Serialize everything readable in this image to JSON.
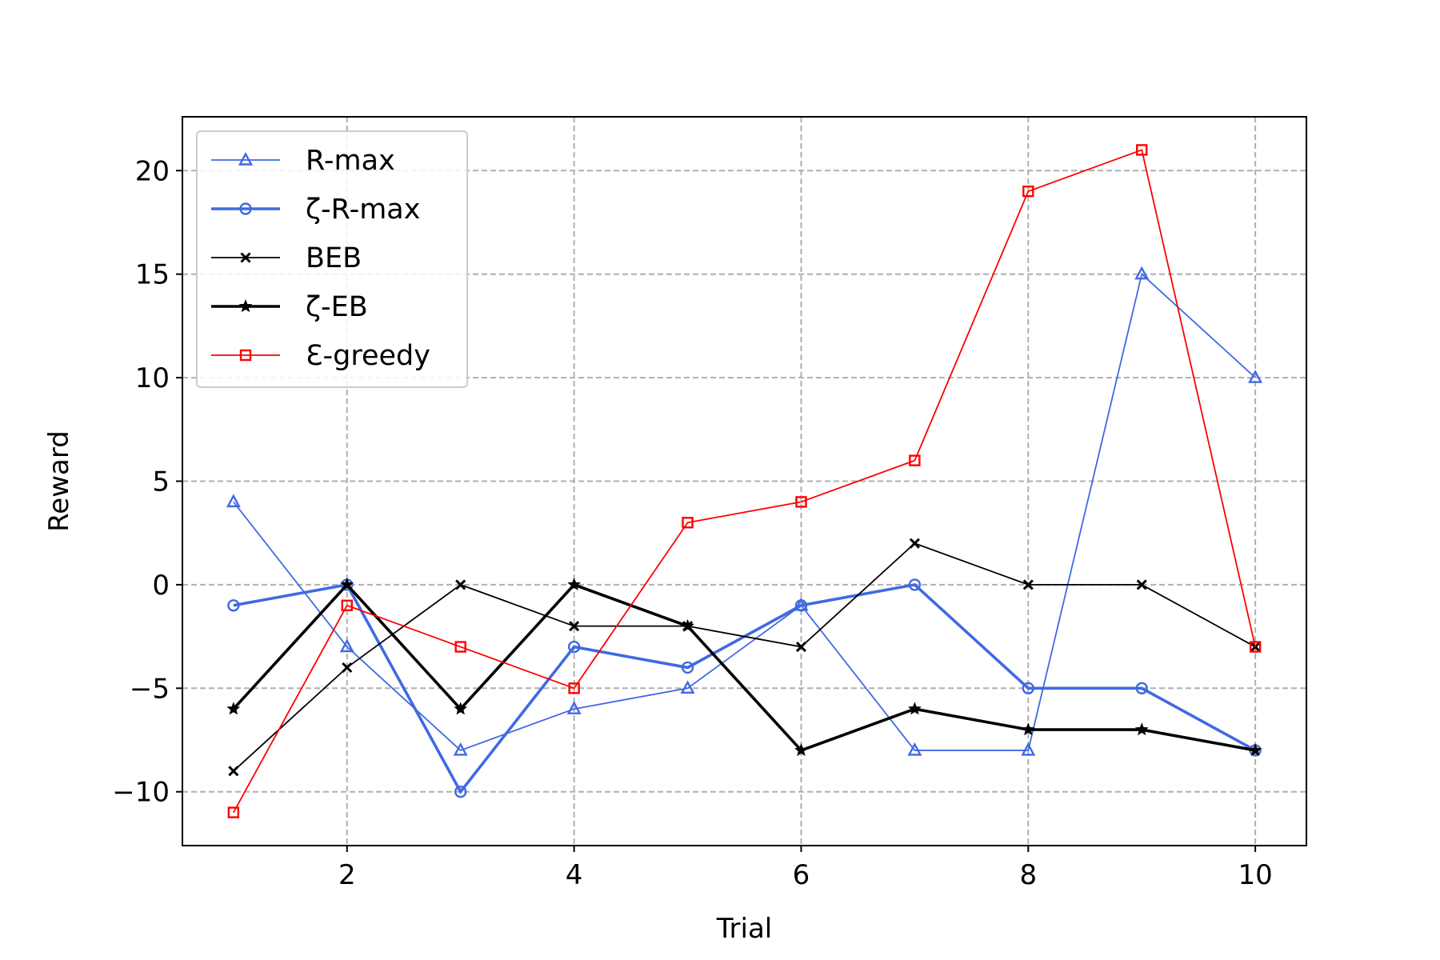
{
  "chart_data": {
    "type": "line",
    "title": "",
    "xlabel": "Trial",
    "ylabel": "Reward",
    "xlim": [
      0.55,
      10.45
    ],
    "ylim": [
      -12.6,
      22.6
    ],
    "xticks": [
      2,
      4,
      6,
      8,
      10
    ],
    "xtick_labels": [
      "2",
      "4",
      "6",
      "8",
      "10"
    ],
    "yticks": [
      -10,
      -5,
      0,
      5,
      10,
      15,
      20
    ],
    "ytick_labels": [
      "−10",
      "−5",
      "0",
      "5",
      "10",
      "15",
      "20"
    ],
    "grid": true,
    "legend_position": "upper-left",
    "x": [
      1,
      2,
      3,
      4,
      5,
      6,
      7,
      8,
      9,
      10
    ],
    "series": [
      {
        "name": "R-max",
        "color": "#4169e1",
        "marker": "triangle",
        "width": "thin",
        "values": [
          4,
          -3,
          -8,
          -6,
          -5,
          -1,
          -8,
          -8,
          15,
          10
        ]
      },
      {
        "name": "ζ-R-max",
        "color": "#4169e1",
        "marker": "circle",
        "width": "thick",
        "values": [
          -1,
          0,
          -10,
          -3,
          -4,
          -1,
          0,
          -5,
          -5,
          -8
        ]
      },
      {
        "name": "BEB",
        "color": "#000000",
        "marker": "x",
        "width": "thin",
        "values": [
          -9,
          -4,
          0,
          -2,
          -2,
          -3,
          2,
          0,
          0,
          -3
        ]
      },
      {
        "name": "ζ-EB",
        "color": "#000000",
        "marker": "star",
        "width": "thick",
        "values": [
          -6,
          0,
          -6,
          0,
          -2,
          -8,
          -6,
          -7,
          -7,
          -8
        ]
      },
      {
        "name": "Ɛ-greedy",
        "color": "#ff0000",
        "marker": "square",
        "width": "thin",
        "values": [
          -11,
          -1,
          -3,
          -5,
          3,
          4,
          6,
          19,
          21,
          -3
        ]
      }
    ]
  }
}
